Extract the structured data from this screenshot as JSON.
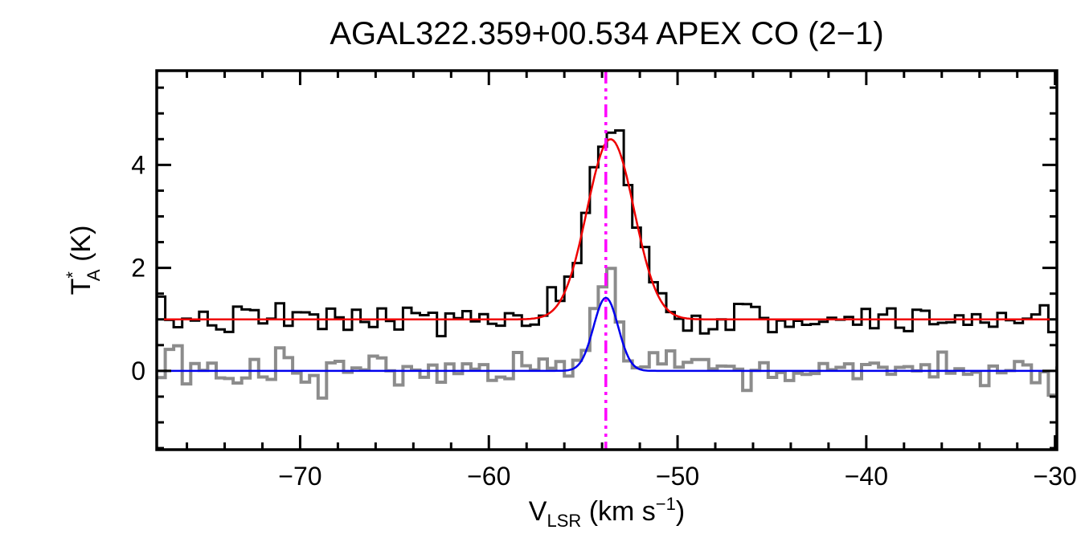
{
  "figure": {
    "background": "#ffffff"
  },
  "chart_data": {
    "type": "line",
    "title": "AGAL322.359+00.534  APEX CO (2−1)",
    "xlabel": "V_LSR (km s^-1)",
    "ylabel": "T_A^* (K)",
    "xlabel_parts": {
      "main": "V",
      "sub": "LSR",
      "mid": " (km s",
      "sup": "−1",
      "end": ")"
    },
    "ylabel_parts": {
      "main": "T",
      "sup": "*",
      "sub": "A",
      "end": " (K)"
    },
    "xlim": [
      -77.6,
      -29.9
    ],
    "ylim": [
      -1.53,
      5.83
    ],
    "x_ticks": [
      -70,
      -60,
      -50,
      -40,
      -30
    ],
    "x_minor_step": 2,
    "y_ticks": [
      0,
      2,
      4
    ],
    "y_minor_step": 0.5,
    "grid": false,
    "legend": "none",
    "frame_color": "#000000",
    "marker_line": {
      "x": -53.8,
      "color": "#ff00ff",
      "style": "dash-dot-dot",
      "width": 3.5
    },
    "series": [
      {
        "name": "smoothed-spectrum-gray",
        "style": "histogram",
        "color": "#8c8c8c",
        "linewidth": 4,
        "baseline": 0.0,
        "noise_sigma": 0.19,
        "channel_width": 0.45,
        "seed": 13,
        "line": {
          "amplitude": 1.75,
          "center": -53.8,
          "sigma": 0.62
        }
      },
      {
        "name": "observed-spectrum-black",
        "style": "histogram",
        "color": "#000000",
        "linewidth": 3,
        "baseline": 1.0,
        "noise_sigma": 0.16,
        "channel_width": 0.45,
        "seed": 7,
        "line": {
          "amplitude": 3.55,
          "center": -53.5,
          "sigma": 1.25
        }
      },
      {
        "name": "gaussian-fit-blue",
        "style": "gaussian",
        "color": "#0000ee",
        "linewidth": 2.5,
        "baseline": 0.0,
        "amplitude": 1.42,
        "center": -53.8,
        "sigma": 0.65
      },
      {
        "name": "gaussian-fit-red",
        "style": "gaussian",
        "color": "#ee0000",
        "linewidth": 2.5,
        "baseline": 1.0,
        "amplitude": 3.5,
        "center": -53.55,
        "sigma": 1.25
      }
    ]
  }
}
